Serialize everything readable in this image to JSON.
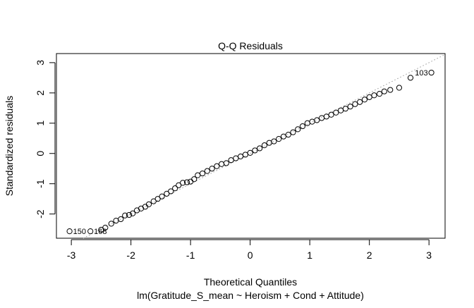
{
  "chart_data": {
    "type": "scatter",
    "title": "Q-Q Residuals",
    "xlabel": "Theoretical Quantiles",
    "ylabel": "Standardized residuals",
    "subtitle": "lm(Gratitude_S_mean ~ Heroism + Cond + Attitude)",
    "xlim": [
      -3.25,
      3.27
    ],
    "ylim": [
      -2.8,
      3.3
    ],
    "xticks": [
      -3,
      -2,
      -1,
      0,
      1,
      2,
      3
    ],
    "yticks": [
      -2,
      -1,
      0,
      1,
      2,
      3
    ],
    "grid": false,
    "reference_line": {
      "slope": 1,
      "intercept": 0,
      "style": "dotted",
      "color": "#999999"
    },
    "x": [
      -3.03,
      -2.68,
      -2.5,
      -2.43,
      -2.33,
      -2.25,
      -2.17,
      -2.1,
      -2.03,
      -1.97,
      -1.9,
      -1.83,
      -1.76,
      -1.7,
      -1.62,
      -1.55,
      -1.48,
      -1.4,
      -1.33,
      -1.26,
      -1.2,
      -1.13,
      -1.06,
      -1.0,
      -0.94,
      -0.88,
      -0.8,
      -0.72,
      -0.64,
      -0.56,
      -0.48,
      -0.4,
      -0.32,
      -0.24,
      -0.16,
      -0.08,
      0,
      0.08,
      0.16,
      0.24,
      0.32,
      0.4,
      0.48,
      0.56,
      0.64,
      0.72,
      0.8,
      0.88,
      0.96,
      1.04,
      1.12,
      1.2,
      1.28,
      1.36,
      1.44,
      1.52,
      1.6,
      1.68,
      1.76,
      1.84,
      1.92,
      2.0,
      2.08,
      2.17,
      2.25,
      2.35,
      2.5,
      2.69,
      3.04
    ],
    "y": [
      -2.57,
      -2.57,
      -2.52,
      -2.45,
      -2.32,
      -2.22,
      -2.17,
      -2.05,
      -2.03,
      -1.98,
      -1.88,
      -1.82,
      -1.76,
      -1.68,
      -1.58,
      -1.5,
      -1.42,
      -1.33,
      -1.25,
      -1.15,
      -1.05,
      -0.97,
      -0.95,
      -0.93,
      -0.85,
      -0.72,
      -0.66,
      -0.58,
      -0.5,
      -0.42,
      -0.35,
      -0.32,
      -0.22,
      -0.16,
      -0.1,
      -0.04,
      0.02,
      0.1,
      0.17,
      0.27,
      0.35,
      0.4,
      0.48,
      0.56,
      0.62,
      0.7,
      0.8,
      0.9,
      1.0,
      1.05,
      1.1,
      1.17,
      1.22,
      1.28,
      1.35,
      1.42,
      1.48,
      1.55,
      1.63,
      1.7,
      1.78,
      1.86,
      1.92,
      1.97,
      2.05,
      2.1,
      2.17,
      2.5,
      2.67
    ],
    "point_labels": [
      {
        "index": 0,
        "text": "150"
      },
      {
        "index": 1,
        "text": "168"
      },
      {
        "index": 68,
        "text": "103",
        "side": "left"
      }
    ]
  }
}
